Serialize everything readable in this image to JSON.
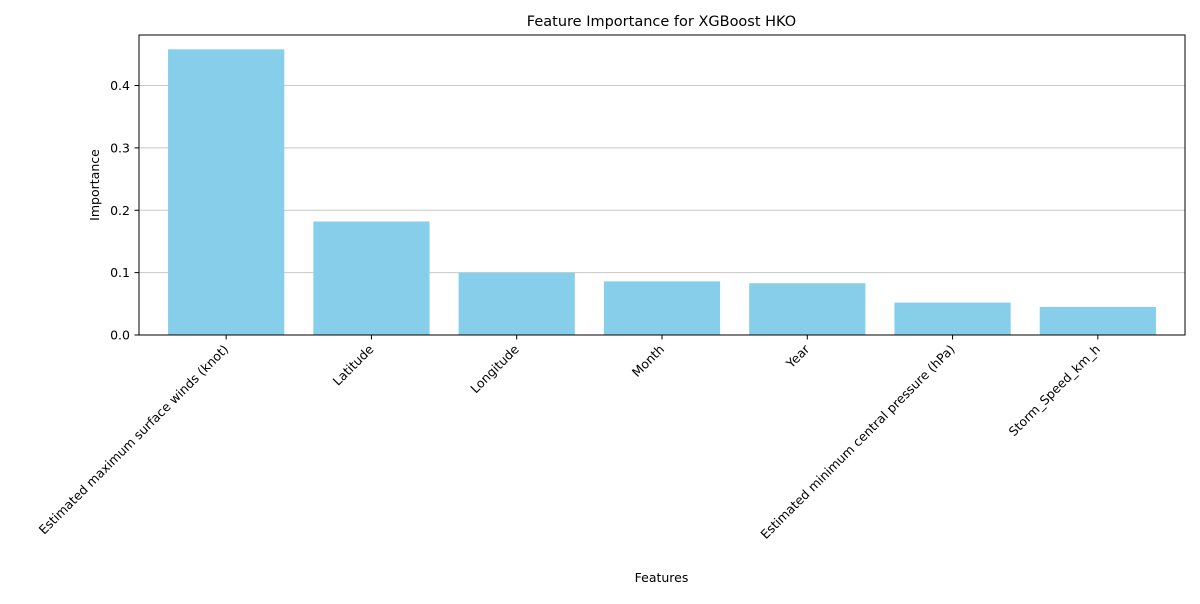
{
  "chart_data": {
    "type": "bar",
    "title": "Feature Importance for XGBoost HKO",
    "xlabel": "Features",
    "ylabel": "Importance",
    "categories": [
      "Estimated maximum surface winds (knot)",
      "Latitude",
      "Longitude",
      "Month",
      "Year",
      "Estimated minimum central pressure (hPa)",
      "Storm_Speed_km_h"
    ],
    "values": [
      0.458,
      0.182,
      0.1,
      0.086,
      0.083,
      0.052,
      0.045
    ],
    "ylim": [
      0,
      0.481
    ],
    "yticks": [
      0.0,
      0.1,
      0.2,
      0.3,
      0.4
    ],
    "ytick_labels": [
      "0.0",
      "0.1",
      "0.2",
      "0.3",
      "0.4"
    ],
    "bar_color": "#87ceeb",
    "grid": "y-axis horizontal lines",
    "x_tick_rotation": "45 degrees"
  }
}
